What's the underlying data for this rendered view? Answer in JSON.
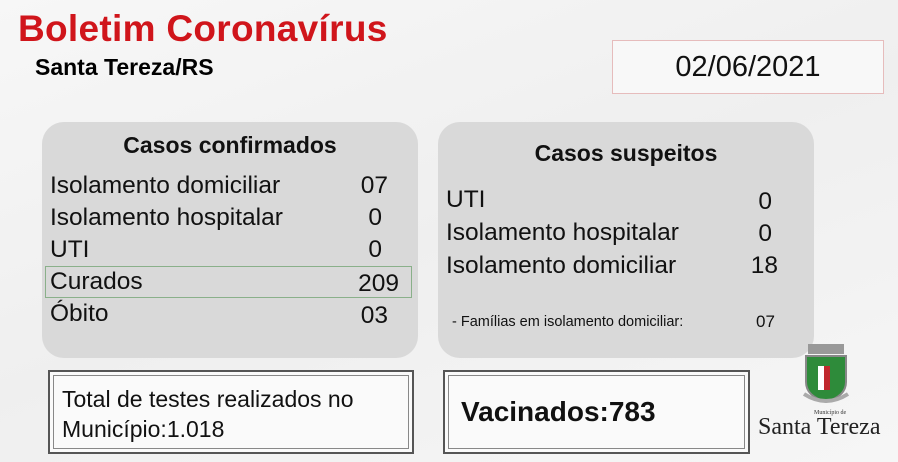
{
  "header": {
    "title": "Boletim Coronavírus",
    "subtitle": "Santa Tereza/RS",
    "date": "02/06/2021"
  },
  "confirmados": {
    "heading": "Casos confirmados",
    "rows": [
      {
        "label": "Isolamento domiciliar",
        "value": "07"
      },
      {
        "label": "Isolamento hospitalar",
        "value": "0"
      },
      {
        "label": "UTI",
        "value": "0"
      },
      {
        "label": "Curados",
        "value": "209"
      },
      {
        "label": "Óbito",
        "value": "03"
      }
    ]
  },
  "suspeitos": {
    "heading": "Casos suspeitos",
    "rows": [
      {
        "label": "UTI",
        "value": "0"
      },
      {
        "label": "Isolamento hospitalar",
        "value": "0"
      },
      {
        "label": "Isolamento domiciliar",
        "value": "18"
      }
    ],
    "familias_label": "- Famílias em isolamento domiciliar:",
    "familias_value": "07"
  },
  "testes": {
    "line1": "Total de testes realizados no",
    "line2": "Município:1.018"
  },
  "vacinados": "Vacinados:783",
  "logo": {
    "small": "Município de",
    "name": "Santa Tereza",
    "colors": {
      "red": "#c0282d",
      "green": "#2e8b3a"
    }
  }
}
